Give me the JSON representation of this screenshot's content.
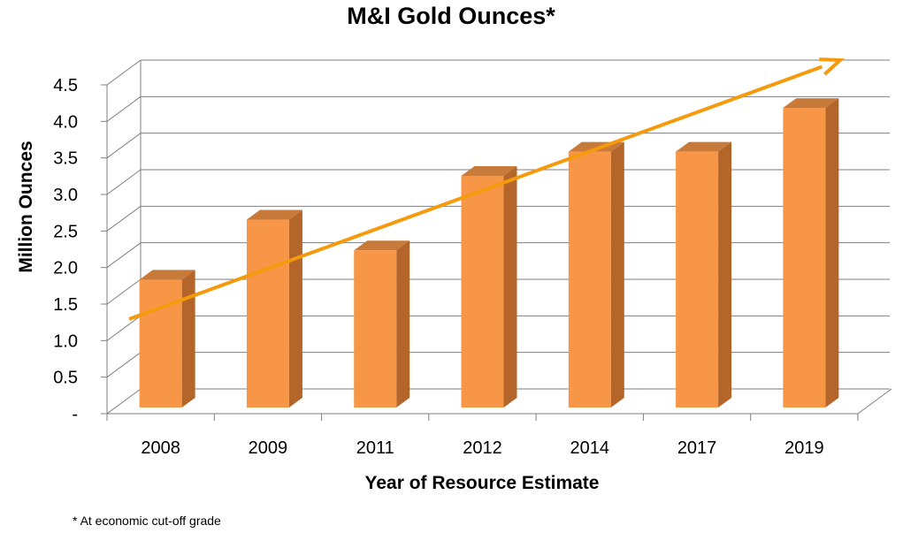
{
  "chart_data": {
    "type": "bar",
    "title": "M&I Gold Ounces*",
    "xlabel": "Year of Resource Estimate",
    "ylabel": "Million Ounces",
    "categories": [
      "2008",
      "2009",
      "2011",
      "2012",
      "2014",
      "2017",
      "2019"
    ],
    "values": [
      1.75,
      2.57,
      2.15,
      3.17,
      3.5,
      3.5,
      4.1
    ],
    "ylim": [
      0,
      4.5
    ],
    "ytick_labels": [
      "-",
      "0.5",
      "1.0",
      "1.5",
      "2.0",
      "2.5",
      "3.0",
      "3.5",
      "4.0",
      "4.5"
    ],
    "grid": true,
    "trend_arrow": true,
    "colors": {
      "bar_front": "#F79646",
      "bar_side": "#B3652A",
      "bar_top": "#C87A3A",
      "trend": "#F59A0C",
      "grid": "#7F7F7F"
    },
    "footnote": "* At economic cut-off grade"
  }
}
